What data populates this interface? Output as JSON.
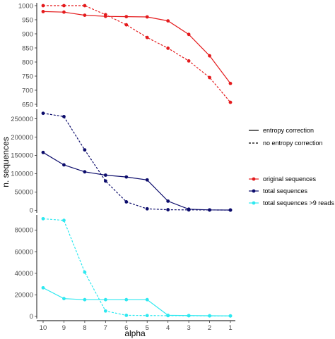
{
  "chart_data": {
    "type": "line",
    "xlabel": "alpha",
    "ylabel": "n. sequences",
    "x": [
      10,
      9,
      8,
      7,
      6,
      5,
      4,
      3,
      2,
      1
    ],
    "x_reversed": true,
    "grid": false,
    "legend_position": "right",
    "linetype_legend": [
      {
        "label": "entropy correction",
        "style": "solid"
      },
      {
        "label": "no entropy correction",
        "style": "dashed"
      }
    ],
    "color_legend": [
      {
        "label": "original sequences",
        "color": "#e41a1c"
      },
      {
        "label": "total sequences",
        "color": "#0b0b6b"
      },
      {
        "label": "total sequences >9 reads",
        "color": "#2de8f0"
      }
    ],
    "panels": [
      {
        "name": "original sequences",
        "color": "#e41a1c",
        "ylim": [
          640,
          1010
        ],
        "yticks": [
          650,
          700,
          750,
          800,
          850,
          900,
          950,
          1000
        ],
        "series": [
          {
            "correction": "entropy correction",
            "style": "solid",
            "values": [
              979,
              977,
              966,
              962,
              961,
              960,
              946,
              898,
              822,
              724
            ]
          },
          {
            "correction": "no entropy correction",
            "style": "dashed",
            "values": [
              1000,
              1000,
              1000,
              968,
              932,
              887,
              849,
              804,
              745,
              657
            ]
          }
        ]
      },
      {
        "name": "total sequences",
        "color": "#0b0b6b",
        "ylim": [
          -7000,
          276000
        ],
        "yticks": [
          0,
          50000,
          100000,
          150000,
          200000,
          250000
        ],
        "series": [
          {
            "correction": "entropy correction",
            "style": "solid",
            "values": [
              158000,
              124000,
              105000,
              96000,
              91000,
              83000,
              25000,
              3000,
              1000,
              700
            ]
          },
          {
            "correction": "no entropy correction",
            "style": "dashed",
            "values": [
              265000,
              256000,
              165000,
              80000,
              23000,
              4000,
              1500,
              1000,
              800,
              600
            ]
          }
        ]
      },
      {
        "name": "total sequences >9 reads",
        "color": "#2de8f0",
        "ylim": [
          -2000,
          94000
        ],
        "yticks": [
          0,
          20000,
          40000,
          60000,
          80000
        ],
        "series": [
          {
            "correction": "entropy correction",
            "style": "solid",
            "values": [
              26500,
              16500,
              15500,
              15500,
              15500,
              15500,
              1000,
              800,
              600,
              500
            ]
          },
          {
            "correction": "no entropy correction",
            "style": "dashed",
            "values": [
              90500,
              89000,
              41000,
              5000,
              1000,
              800,
              700,
              600,
              500,
              400
            ]
          }
        ]
      }
    ]
  }
}
